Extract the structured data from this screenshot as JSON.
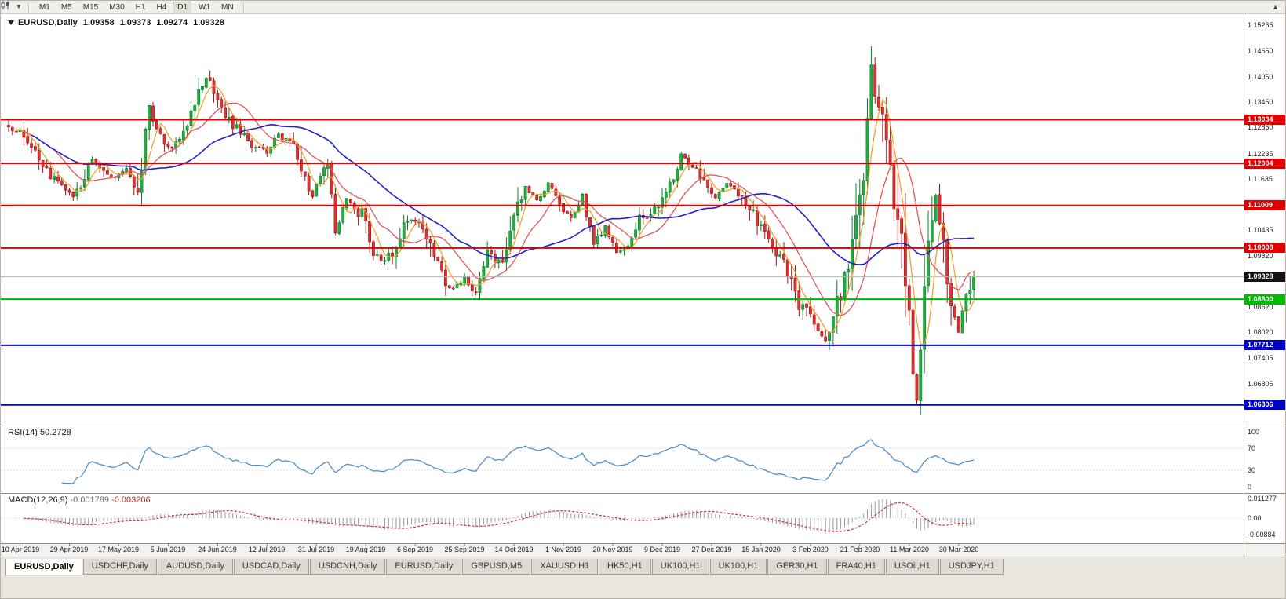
{
  "toolbar": {
    "timeframes": [
      {
        "label": "M1"
      },
      {
        "label": "M5"
      },
      {
        "label": "M15"
      },
      {
        "label": "M30"
      },
      {
        "label": "H1"
      },
      {
        "label": "H4"
      },
      {
        "label": "D1"
      },
      {
        "label": "W1"
      },
      {
        "label": "MN"
      }
    ],
    "active_timeframe": "D1"
  },
  "chart": {
    "title": {
      "symbol": "EURUSD,Daily",
      "open": "1.09358",
      "high": "1.09373",
      "low": "1.09274",
      "close": "1.09328"
    },
    "price_axis": {
      "labels": [
        "1.15265",
        "1.14650",
        "1.14050",
        "1.13450",
        "1.12850",
        "1.12235",
        "1.11635",
        "1.10435",
        "1.09820",
        "1.08620",
        "1.08020",
        "1.07405",
        "1.06805"
      ]
    },
    "hlines": [
      {
        "label": "1.13034",
        "value": 1.13034,
        "color": "#E00000"
      },
      {
        "label": "1.12004",
        "value": 1.12004,
        "color": "#E00000"
      },
      {
        "label": "1.11009",
        "value": 1.11009,
        "color": "#E00000"
      },
      {
        "label": "1.10008",
        "value": 1.10008,
        "color": "#E00000"
      },
      {
        "label": "1.08800",
        "value": 1.088,
        "color": "#00BA00"
      },
      {
        "label": "1.07712",
        "value": 1.07712,
        "color": "#0000C8"
      },
      {
        "label": "1.06306",
        "value": 1.06306,
        "color": "#0000C8"
      }
    ],
    "current_price": {
      "label": "1.09328",
      "value": 1.09328,
      "badge_color": "#111111"
    },
    "date_axis": {
      "labels": [
        {
          "text": "10 Apr 2019",
          "bar": 3
        },
        {
          "text": "29 Apr 2019",
          "bar": 16
        },
        {
          "text": "17 May 2019",
          "bar": 29
        },
        {
          "text": "5 Jun 2019",
          "bar": 42
        },
        {
          "text": "24 Jun 2019",
          "bar": 55
        },
        {
          "text": "12 Jul 2019",
          "bar": 68
        },
        {
          "text": "31 Jul 2019",
          "bar": 81
        },
        {
          "text": "19 Aug 2019",
          "bar": 94
        },
        {
          "text": "6 Sep 2019",
          "bar": 107
        },
        {
          "text": "25 Sep 2019",
          "bar": 120
        },
        {
          "text": "14 Oct 2019",
          "bar": 133
        },
        {
          "text": "1 Nov 2019",
          "bar": 146
        },
        {
          "text": "20 Nov 2019",
          "bar": 159
        },
        {
          "text": "9 Dec 2019",
          "bar": 172
        },
        {
          "text": "27 Dec 2019",
          "bar": 185
        },
        {
          "text": "15 Jan 2020",
          "bar": 198
        },
        {
          "text": "3 Feb 2020",
          "bar": 211
        },
        {
          "text": "21 Feb 2020",
          "bar": 224
        },
        {
          "text": "11 Mar 2020",
          "bar": 237
        },
        {
          "text": "30 Mar 2020",
          "bar": 250
        }
      ]
    },
    "bars": 255,
    "series_anchors": [
      [
        0,
        1.1292
      ],
      [
        4,
        1.1262
      ],
      [
        10,
        1.118
      ],
      [
        14,
        1.115
      ],
      [
        17,
        1.112
      ],
      [
        22,
        1.1208
      ],
      [
        27,
        1.1163
      ],
      [
        31,
        1.1188
      ],
      [
        34,
        1.1128
      ],
      [
        37,
        1.133
      ],
      [
        40,
        1.1255
      ],
      [
        43,
        1.1232
      ],
      [
        47,
        1.1295
      ],
      [
        51,
        1.1392
      ],
      [
        53,
        1.1405
      ],
      [
        56,
        1.132
      ],
      [
        60,
        1.1282
      ],
      [
        64,
        1.1243
      ],
      [
        68,
        1.1226
      ],
      [
        71,
        1.127
      ],
      [
        75,
        1.1232
      ],
      [
        78,
        1.1162
      ],
      [
        80,
        1.1122
      ],
      [
        82,
        1.1172
      ],
      [
        84,
        1.119
      ],
      [
        86,
        1.1048
      ],
      [
        89,
        1.1112
      ],
      [
        93,
        1.1078
      ],
      [
        96,
        1.0988
      ],
      [
        99,
        1.0972
      ],
      [
        102,
        1.1002
      ],
      [
        105,
        1.1072
      ],
      [
        108,
        1.1058
      ],
      [
        111,
        1.1022
      ],
      [
        114,
        1.0932
      ],
      [
        117,
        1.0904
      ],
      [
        120,
        1.0932
      ],
      [
        123,
        1.0892
      ],
      [
        126,
        1.0988
      ],
      [
        130,
        1.0962
      ],
      [
        133,
        1.1068
      ],
      [
        136,
        1.1142
      ],
      [
        139,
        1.1112
      ],
      [
        142,
        1.1152
      ],
      [
        145,
        1.1102
      ],
      [
        148,
        1.1072
      ],
      [
        151,
        1.1118
      ],
      [
        154,
        1.1012
      ],
      [
        157,
        1.1052
      ],
      [
        160,
        1.0992
      ],
      [
        163,
        1.1012
      ],
      [
        166,
        1.1068
      ],
      [
        169,
        1.1082
      ],
      [
        172,
        1.1112
      ],
      [
        175,
        1.1172
      ],
      [
        177,
        1.1222
      ],
      [
        180,
        1.1192
      ],
      [
        183,
        1.1162
      ],
      [
        186,
        1.1122
      ],
      [
        189,
        1.1152
      ],
      [
        192,
        1.1132
      ],
      [
        195,
        1.1092
      ],
      [
        198,
        1.1052
      ],
      [
        201,
        1.1002
      ],
      [
        204,
        1.0982
      ],
      [
        207,
        1.0882
      ],
      [
        210,
        1.0852
      ],
      [
        213,
        1.0802
      ],
      [
        215,
        1.0786
      ],
      [
        218,
        1.0872
      ],
      [
        221,
        1.0952
      ],
      [
        223,
        1.1052
      ],
      [
        225,
        1.1132
      ],
      [
        227,
        1.1438
      ],
      [
        228,
        1.1358
      ],
      [
        230,
        1.1288
      ],
      [
        232,
        1.1188
      ],
      [
        234,
        1.1052
      ],
      [
        236,
        1.0952
      ],
      [
        238,
        1.0702
      ],
      [
        239,
        1.0648
      ],
      [
        241,
        1.0902
      ],
      [
        243,
        1.1052
      ],
      [
        244,
        1.1118
      ],
      [
        246,
        1.1002
      ],
      [
        248,
        1.0872
      ],
      [
        250,
        1.0802
      ],
      [
        252,
        1.0898
      ],
      [
        254,
        1.0933
      ]
    ],
    "colors": {
      "up_fill": "#1FAF3F",
      "up_stroke": "#0B7D2A",
      "down_fill": "#DF3333",
      "down_stroke": "#9E1515",
      "ma_fast": "#EFA32F",
      "ma_mid": "#E05555",
      "ma_slow": "#2020CF"
    }
  },
  "rsi": {
    "name": "RSI(14)",
    "value": "50.2728",
    "color": "#4E8FCC",
    "axis_labels": [
      "100",
      "70",
      "30",
      "0"
    ],
    "levels": [
      70,
      30
    ]
  },
  "macd": {
    "name": "MACD(12,26,9)",
    "main_value": "-0.001789",
    "signal_value": "-0.003206",
    "hist_color": "#9A9A9A",
    "signal_color": "#CC3333",
    "axis_labels": [
      "0.011277",
      "0.00",
      "-0.00884"
    ]
  },
  "tabs": [
    {
      "label": "EURUSD,Daily",
      "active": true
    },
    {
      "label": "USDCHF,Daily"
    },
    {
      "label": "AUDUSD,Daily"
    },
    {
      "label": "USDCAD,Daily"
    },
    {
      "label": "USDCNH,Daily"
    },
    {
      "label": "EURUSD,Daily"
    },
    {
      "label": "GBPUSD,M5"
    },
    {
      "label": "XAUUSD,H1"
    },
    {
      "label": "HK50,H1"
    },
    {
      "label": "UK100,H1"
    },
    {
      "label": "UK100,H1"
    },
    {
      "label": "GER30,H1"
    },
    {
      "label": "FRA40,H1"
    },
    {
      "label": "USOil,H1"
    },
    {
      "label": "USDJPY,H1"
    }
  ]
}
